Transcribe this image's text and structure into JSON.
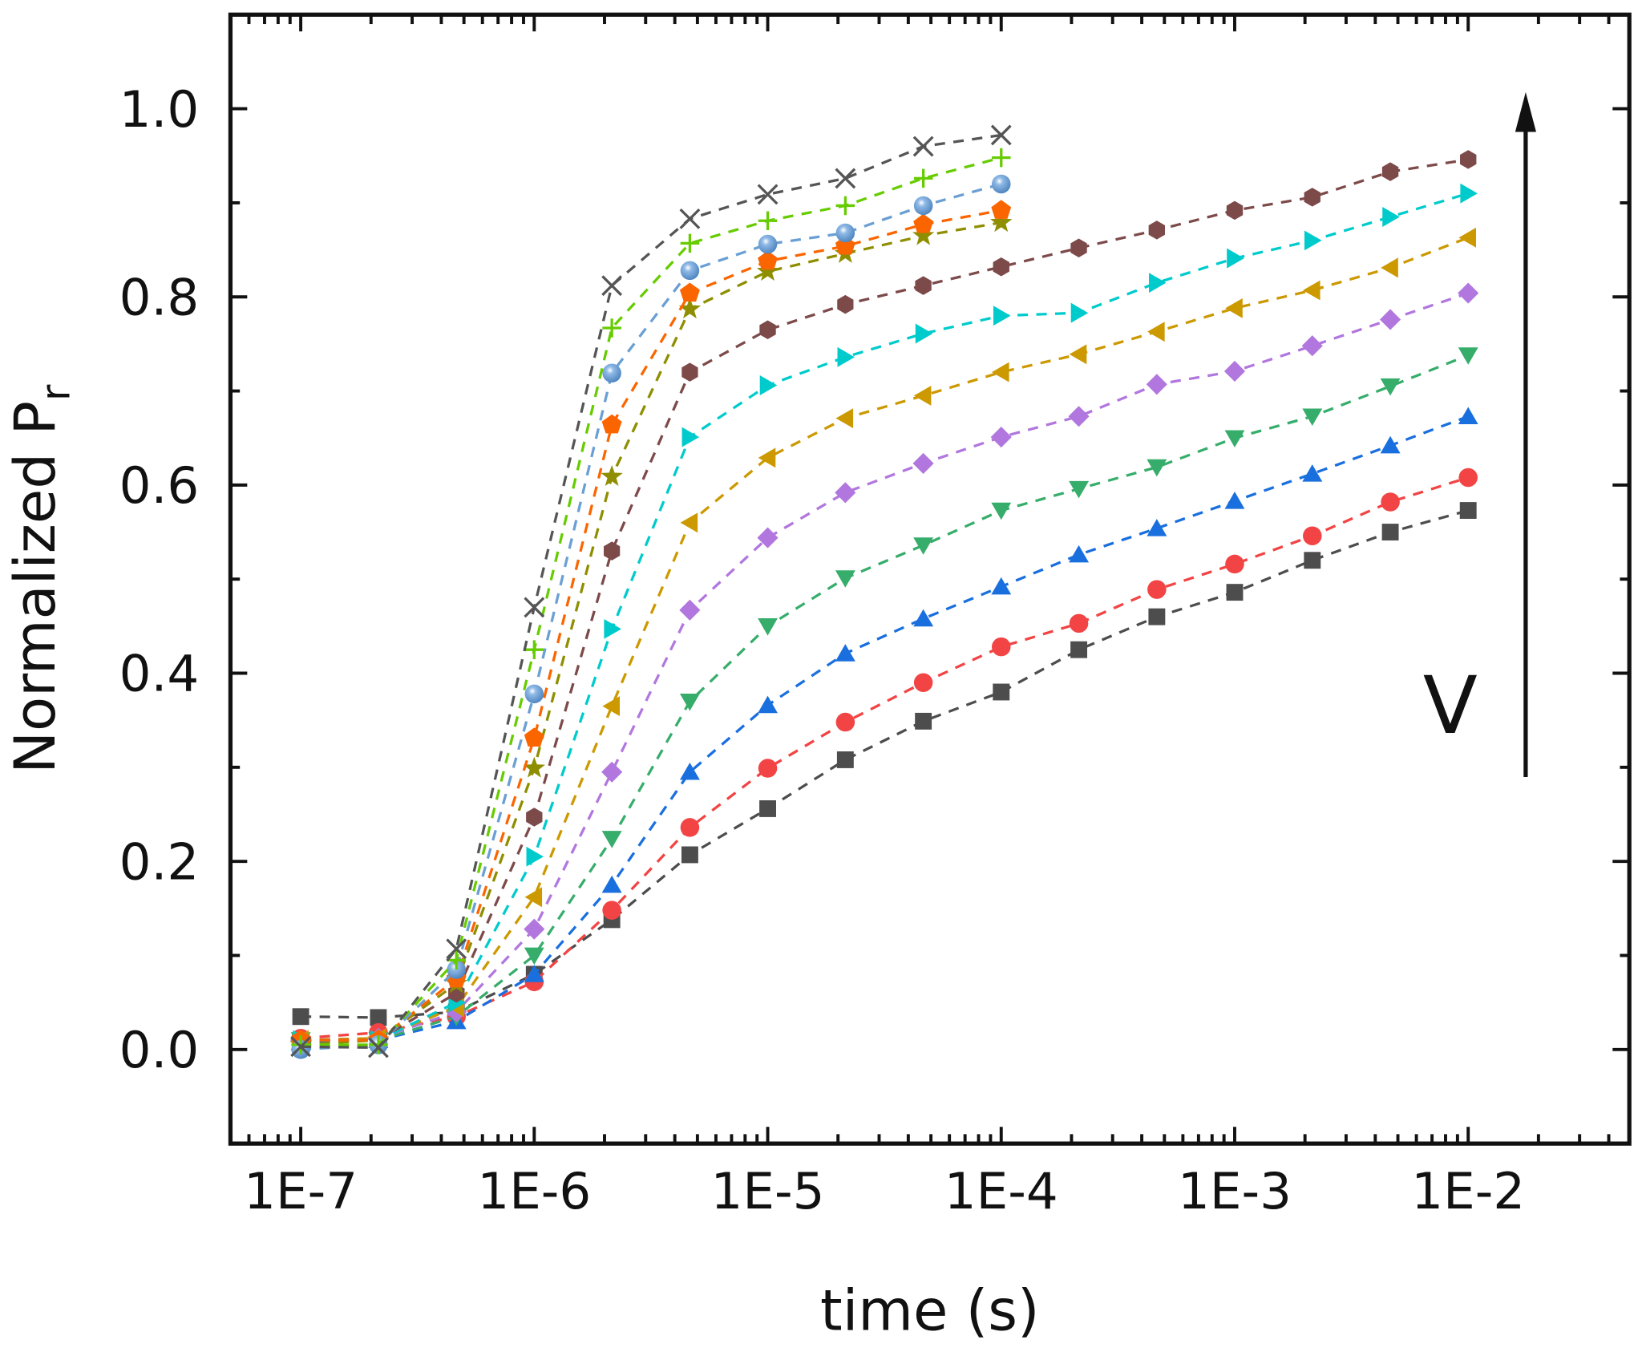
{
  "chart_data": {
    "type": "scatter",
    "title": "",
    "xlabel": "time (s)",
    "ylabel": "Normalized P",
    "ylabel_subscript": "r",
    "x_scale": "log",
    "xlim": [
      5e-08,
      0.049
    ],
    "ylim": [
      -0.1,
      1.1
    ],
    "x_ticks": [
      1e-07,
      1e-06,
      1e-05,
      0.0001,
      0.001,
      0.01
    ],
    "x_tick_labels": [
      "1E-7",
      "1E-6",
      "1E-5",
      "1E-4",
      "1E-3",
      "1E-2"
    ],
    "y_ticks": [
      0.0,
      0.2,
      0.4,
      0.6,
      0.8,
      1.0
    ],
    "y_tick_labels": [
      "0.0",
      "0.2",
      "0.4",
      "0.6",
      "0.8",
      "1.0"
    ],
    "grid": false,
    "line_style": "dashed",
    "annotation": {
      "text": "V",
      "arrow": "up"
    },
    "x": [
      1e-07,
      2.15e-07,
      4.64e-07,
      1e-06,
      2.15e-06,
      4.64e-06,
      1e-05,
      2.15e-05,
      4.64e-05,
      0.0001,
      0.000215,
      0.000464,
      0.001,
      0.00215,
      0.00464,
      0.01
    ],
    "series": [
      {
        "marker": "square",
        "color": "#4d4d4d",
        "values": [
          0.035,
          0.034,
          0.04,
          0.08,
          0.138,
          0.207,
          0.256,
          0.308,
          0.349,
          0.38,
          0.425,
          0.46,
          0.486,
          0.52,
          0.55,
          0.573
        ]
      },
      {
        "marker": "circle",
        "color": "#f24444",
        "values": [
          0.012,
          0.018,
          0.035,
          0.072,
          0.148,
          0.236,
          0.299,
          0.348,
          0.39,
          0.428,
          0.453,
          0.489,
          0.516,
          0.546,
          0.582,
          0.608
        ]
      },
      {
        "marker": "triangle-up",
        "color": "#1a6fdf",
        "values": [
          0.008,
          0.01,
          0.03,
          0.08,
          0.175,
          0.295,
          0.366,
          0.421,
          0.458,
          0.492,
          0.526,
          0.554,
          0.583,
          0.612,
          0.642,
          0.673
        ]
      },
      {
        "marker": "triangle-down",
        "color": "#37ad6b",
        "values": [
          0.01,
          0.01,
          0.035,
          0.1,
          0.224,
          0.37,
          0.45,
          0.501,
          0.536,
          0.573,
          0.596,
          0.619,
          0.65,
          0.673,
          0.705,
          0.738
        ]
      },
      {
        "marker": "diamond",
        "color": "#b177de",
        "values": [
          0.01,
          0.012,
          0.04,
          0.128,
          0.295,
          0.467,
          0.544,
          0.592,
          0.623,
          0.651,
          0.673,
          0.707,
          0.721,
          0.748,
          0.776,
          0.804
        ]
      },
      {
        "marker": "triangle-left",
        "color": "#cc9900",
        "values": [
          0.01,
          0.012,
          0.045,
          0.162,
          0.365,
          0.56,
          0.629,
          0.671,
          0.695,
          0.72,
          0.739,
          0.763,
          0.788,
          0.807,
          0.831,
          0.863
        ]
      },
      {
        "marker": "triangle-right",
        "color": "#00cbcc",
        "values": [
          0.01,
          0.01,
          0.05,
          0.205,
          0.447,
          0.651,
          0.706,
          0.736,
          0.761,
          0.78,
          0.783,
          0.815,
          0.841,
          0.86,
          0.885,
          0.91
        ]
      },
      {
        "marker": "hexagon",
        "color": "#7d4a4a",
        "values": [
          0.01,
          0.01,
          0.06,
          0.247,
          0.53,
          0.72,
          0.765,
          0.792,
          0.812,
          0.832,
          0.852,
          0.871,
          0.892,
          0.906,
          0.933,
          0.946
        ]
      },
      {
        "marker": "star",
        "color": "#8e8e00",
        "values": [
          0.005,
          0.01,
          0.07,
          0.299,
          0.609,
          0.787,
          0.827,
          0.846,
          0.865,
          0.879
        ]
      },
      {
        "marker": "pentagon",
        "color": "#fb6500",
        "values": [
          0.01,
          0.01,
          0.075,
          0.331,
          0.664,
          0.804,
          0.838,
          0.854,
          0.877,
          0.892
        ]
      },
      {
        "marker": "sphere",
        "color": "#6a9fd4",
        "values": [
          0.0,
          0.005,
          0.085,
          0.378,
          0.719,
          0.828,
          0.856,
          0.868,
          0.897,
          0.92
        ]
      },
      {
        "marker": "plus",
        "color": "#66cc00",
        "values": [
          0.005,
          0.005,
          0.095,
          0.425,
          0.767,
          0.857,
          0.881,
          0.897,
          0.926,
          0.948
        ]
      },
      {
        "marker": "cross",
        "color": "#555555",
        "values": [
          0.003,
          0.002,
          0.107,
          0.47,
          0.812,
          0.883,
          0.909,
          0.926,
          0.96,
          0.972
        ]
      }
    ]
  }
}
